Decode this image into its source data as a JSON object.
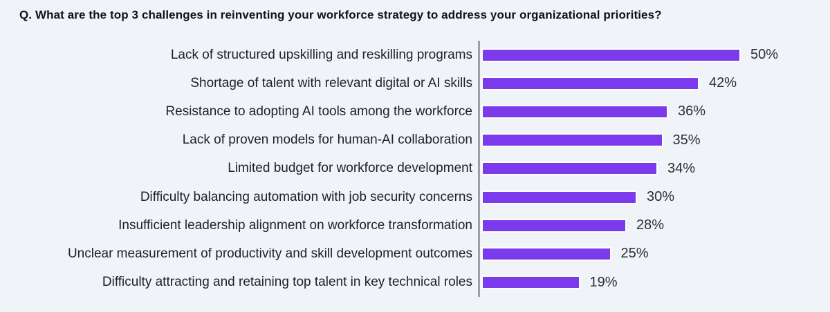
{
  "page": {
    "background": "#F0F4F8"
  },
  "title": "Q. What are the top 3 challenges in reinventing your workforce strategy to address your organizational priorities?",
  "chart_data": {
    "type": "bar",
    "orientation": "horizontal",
    "title": "Q. What are the top 3 challenges in reinventing your workforce strategy to address your organizational priorities?",
    "categories": [
      "Lack of structured upskilling and reskilling programs",
      "Shortage of talent with relevant digital or AI skills",
      "Resistance to adopting AI tools among the workforce",
      "Lack of proven models for human-AI collaboration",
      "Limited budget for workforce development",
      "Difficulty balancing automation with job security concerns",
      "Insufficient leadership alignment on workforce transformation",
      "Unclear measurement of productivity and skill development outcomes",
      "Difficulty attracting and retaining top talent in key technical roles"
    ],
    "values": [
      50,
      42,
      36,
      35,
      34,
      30,
      28,
      25,
      19
    ],
    "value_labels": [
      "50%",
      "42%",
      "36%",
      "35%",
      "34%",
      "30%",
      "28%",
      "25%",
      "19%"
    ],
    "value_suffix": "%",
    "xlabel": "",
    "ylabel": "",
    "xlim": [
      0,
      53
    ],
    "grid": false,
    "legend": false,
    "bar_color": "#7C3AED",
    "bar_outline_color": "#FFFFFF",
    "axis_color": "#9AA0A6",
    "background_color": "#F0F4F8",
    "label_color": "#1D2024",
    "value_color": "#2B2E33"
  }
}
